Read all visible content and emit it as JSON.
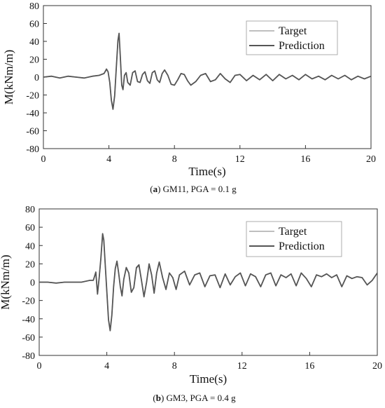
{
  "chart_data": [
    {
      "type": "line",
      "caption_letter": "a",
      "caption_text": "GM11, PGA = 0.1 g",
      "xlabel": "Time(s)",
      "ylabel": "M(kNm/m)",
      "xlim": [
        0,
        20
      ],
      "ylim": [
        -80,
        80
      ],
      "xticks": [
        0,
        4,
        8,
        12,
        16,
        20
      ],
      "yticks": [
        80,
        60,
        40,
        20,
        0,
        -20,
        -40,
        -60,
        -80
      ],
      "legend_position": "top-right",
      "series_colors": [
        "#aaaaaa",
        "#555555"
      ],
      "series": [
        {
          "name": "Target",
          "x": [
            0,
            0.5,
            1,
            1.5,
            2,
            2.5,
            3,
            3.4,
            3.7,
            3.85,
            3.95,
            4.05,
            4.15,
            4.25,
            4.35,
            4.45,
            4.55,
            4.62,
            4.7,
            4.78,
            4.86,
            4.95,
            5.05,
            5.15,
            5.3,
            5.45,
            5.6,
            5.75,
            5.9,
            6.05,
            6.2,
            6.35,
            6.5,
            6.65,
            6.8,
            6.95,
            7.1,
            7.25,
            7.4,
            7.6,
            7.8,
            8.0,
            8.2,
            8.4,
            8.6,
            8.8,
            9.0,
            9.3,
            9.6,
            9.9,
            10.2,
            10.5,
            10.8,
            11.1,
            11.4,
            11.7,
            12.0,
            12.4,
            12.8,
            13.2,
            13.6,
            14.0,
            14.4,
            14.8,
            15.2,
            15.6,
            16.0,
            16.4,
            16.8,
            17.2,
            17.6,
            18.0,
            18.4,
            18.8,
            19.2,
            19.6,
            20.0
          ],
          "y": [
            0,
            1,
            -1,
            1,
            0,
            -1,
            1,
            2,
            4,
            8,
            6,
            -5,
            -25,
            -35,
            -20,
            10,
            40,
            48,
            20,
            -8,
            -13,
            2,
            5,
            -6,
            -9,
            5,
            7,
            -5,
            -6,
            3,
            6,
            -4,
            -7,
            5,
            7,
            -3,
            -6,
            4,
            8,
            2,
            -8,
            -9,
            -3,
            4,
            3,
            -4,
            -9,
            -5,
            2,
            4,
            -5,
            -3,
            4,
            -2,
            -6,
            2,
            3,
            -4,
            2,
            -3,
            3,
            -4,
            3,
            -2,
            2,
            -3,
            3,
            -2,
            1,
            -3,
            2,
            -2,
            2,
            -3,
            1,
            -2,
            1
          ]
        },
        {
          "name": "Prediction",
          "x": [
            0,
            0.5,
            1,
            1.5,
            2,
            2.5,
            3,
            3.4,
            3.7,
            3.85,
            3.95,
            4.05,
            4.15,
            4.25,
            4.35,
            4.45,
            4.55,
            4.62,
            4.7,
            4.78,
            4.86,
            4.95,
            5.05,
            5.15,
            5.3,
            5.45,
            5.6,
            5.75,
            5.9,
            6.05,
            6.2,
            6.35,
            6.5,
            6.65,
            6.8,
            6.95,
            7.1,
            7.25,
            7.4,
            7.6,
            7.8,
            8.0,
            8.2,
            8.4,
            8.6,
            8.8,
            9.0,
            9.3,
            9.6,
            9.9,
            10.2,
            10.5,
            10.8,
            11.1,
            11.4,
            11.7,
            12.0,
            12.4,
            12.8,
            13.2,
            13.6,
            14.0,
            14.4,
            14.8,
            15.2,
            15.6,
            16.0,
            16.4,
            16.8,
            17.2,
            17.6,
            18.0,
            18.4,
            18.8,
            19.2,
            19.6,
            20.0
          ],
          "y": [
            0,
            1,
            -1,
            1,
            0,
            -1,
            1,
            2,
            4,
            9,
            6,
            -6,
            -26,
            -36,
            -21,
            10,
            41,
            49,
            21,
            -9,
            -14,
            2,
            5,
            -6,
            -9,
            5,
            7,
            -5,
            -6,
            3,
            6,
            -4,
            -7,
            5,
            7,
            -3,
            -6,
            4,
            8,
            2,
            -8,
            -9,
            -3,
            4,
            3,
            -4,
            -9,
            -5,
            2,
            4,
            -5,
            -3,
            4,
            -2,
            -6,
            2,
            3,
            -4,
            2,
            -3,
            3,
            -4,
            3,
            -2,
            2,
            -3,
            3,
            -2,
            1,
            -3,
            2,
            -2,
            2,
            -3,
            1,
            -2,
            1
          ]
        }
      ]
    },
    {
      "type": "line",
      "caption_letter": "b",
      "caption_text": "GM3, PGA = 0.4 g",
      "xlabel": "Time(s)",
      "ylabel": "M(kNm/m)",
      "xlim": [
        0,
        20
      ],
      "ylim": [
        -80,
        80
      ],
      "xticks": [
        0,
        4,
        8,
        12,
        16,
        20
      ],
      "yticks": [
        80,
        60,
        40,
        20,
        0,
        -20,
        -40,
        -60,
        -80
      ],
      "legend_position": "top-right",
      "series_colors": [
        "#aaaaaa",
        "#555555"
      ],
      "series": [
        {
          "name": "Target",
          "x": [
            0,
            0.5,
            1,
            1.5,
            2,
            2.5,
            3,
            3.2,
            3.35,
            3.45,
            3.55,
            3.65,
            3.75,
            3.82,
            3.9,
            4.0,
            4.1,
            4.2,
            4.3,
            4.4,
            4.5,
            4.6,
            4.7,
            4.8,
            4.9,
            5.0,
            5.15,
            5.3,
            5.45,
            5.6,
            5.75,
            5.9,
            6.05,
            6.2,
            6.35,
            6.5,
            6.65,
            6.8,
            6.95,
            7.1,
            7.3,
            7.5,
            7.7,
            7.9,
            8.1,
            8.3,
            8.6,
            8.9,
            9.2,
            9.5,
            9.8,
            10.1,
            10.4,
            10.7,
            11.0,
            11.3,
            11.6,
            11.9,
            12.2,
            12.5,
            12.8,
            13.1,
            13.4,
            13.7,
            14.0,
            14.3,
            14.6,
            14.9,
            15.2,
            15.5,
            15.8,
            16.1,
            16.4,
            16.7,
            17.0,
            17.3,
            17.6,
            17.9,
            18.2,
            18.5,
            18.8,
            19.1,
            19.4,
            19.7,
            20.0
          ],
          "y": [
            0,
            0,
            -1,
            0,
            0,
            0,
            2,
            2,
            10,
            -12,
            5,
            25,
            52,
            45,
            20,
            -10,
            -40,
            -52,
            -35,
            -5,
            15,
            22,
            10,
            -5,
            -14,
            3,
            15,
            10,
            -10,
            -6,
            15,
            18,
            2,
            -15,
            0,
            19,
            8,
            -12,
            10,
            22,
            5,
            -8,
            10,
            5,
            -8,
            8,
            12,
            -3,
            8,
            10,
            -5,
            7,
            8,
            -6,
            9,
            -3,
            6,
            10,
            -4,
            9,
            6,
            -5,
            8,
            10,
            -4,
            8,
            5,
            9,
            -4,
            10,
            4,
            -5,
            8,
            6,
            9,
            5,
            8,
            -5,
            7,
            4,
            6,
            5,
            -3,
            2,
            10
          ]
        },
        {
          "name": "Prediction",
          "x": [
            0,
            0.5,
            1,
            1.5,
            2,
            2.5,
            3,
            3.2,
            3.35,
            3.45,
            3.55,
            3.65,
            3.75,
            3.82,
            3.9,
            4.0,
            4.1,
            4.2,
            4.3,
            4.4,
            4.5,
            4.6,
            4.7,
            4.8,
            4.9,
            5.0,
            5.15,
            5.3,
            5.45,
            5.6,
            5.75,
            5.9,
            6.05,
            6.2,
            6.35,
            6.5,
            6.65,
            6.8,
            6.95,
            7.1,
            7.3,
            7.5,
            7.7,
            7.9,
            8.1,
            8.3,
            8.6,
            8.9,
            9.2,
            9.5,
            9.8,
            10.1,
            10.4,
            10.7,
            11.0,
            11.3,
            11.6,
            11.9,
            12.2,
            12.5,
            12.8,
            13.1,
            13.4,
            13.7,
            14.0,
            14.3,
            14.6,
            14.9,
            15.2,
            15.5,
            15.8,
            16.1,
            16.4,
            16.7,
            17.0,
            17.3,
            17.6,
            17.9,
            18.2,
            18.5,
            18.8,
            19.1,
            19.4,
            19.7,
            20.0
          ],
          "y": [
            0,
            0,
            -1,
            0,
            0,
            0,
            2,
            2,
            11,
            -13,
            5,
            26,
            53,
            46,
            21,
            -10,
            -41,
            -53,
            -36,
            -5,
            15,
            23,
            10,
            -5,
            -15,
            3,
            16,
            10,
            -11,
            -6,
            16,
            19,
            2,
            -16,
            0,
            20,
            8,
            -12,
            10,
            22,
            5,
            -8,
            10,
            5,
            -8,
            8,
            12,
            -3,
            8,
            10,
            -5,
            7,
            8,
            -6,
            9,
            -3,
            6,
            10,
            -4,
            9,
            6,
            -5,
            8,
            10,
            -4,
            8,
            5,
            9,
            -4,
            10,
            4,
            -5,
            8,
            6,
            9,
            5,
            8,
            -5,
            7,
            4,
            6,
            5,
            -3,
            2,
            10
          ]
        }
      ]
    }
  ]
}
